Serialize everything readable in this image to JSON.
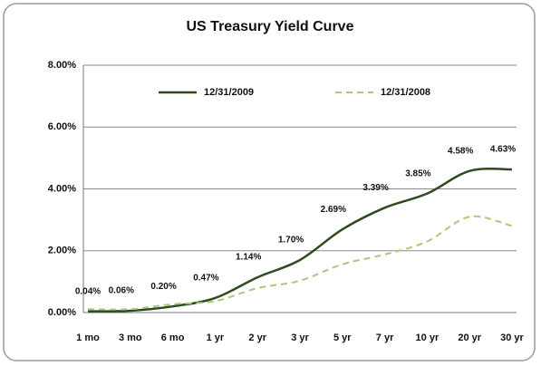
{
  "chart_data": {
    "type": "line",
    "title": "US Treasury Yield Curve",
    "categories": [
      "1 mo",
      "3 mo",
      "6 mo",
      "1 yr",
      "2 yr",
      "3 yr",
      "5 yr",
      "7 yr",
      "10 yr",
      "20 yr",
      "30 yr"
    ],
    "series": [
      {
        "name": "12/31/2009",
        "color": "#2f4a1c",
        "dash": false,
        "values": [
          0.04,
          0.06,
          0.2,
          0.47,
          1.14,
          1.7,
          2.69,
          3.39,
          3.85,
          4.58,
          4.63
        ],
        "value_labels": [
          "0.04%",
          "0.06%",
          "0.20%",
          "0.47%",
          "1.14%",
          "1.70%",
          "2.69%",
          "3.39%",
          "3.85%",
          "4.58%",
          "4.63%"
        ]
      },
      {
        "name": "12/31/2008",
        "color": "#a9c97c",
        "dash": true,
        "values": [
          0.11,
          0.11,
          0.27,
          0.37,
          0.79,
          1.03,
          1.56,
          1.88,
          2.3,
          3.1,
          2.8
        ]
      }
    ],
    "ylim": [
      0,
      8
    ],
    "yticks": [
      {
        "value": 0,
        "label": "0.00%"
      },
      {
        "value": 2,
        "label": "2.00%"
      },
      {
        "value": 4,
        "label": "4.00%"
      },
      {
        "value": 6,
        "label": "6.00%"
      },
      {
        "value": 8,
        "label": "8.00%"
      }
    ],
    "grid": true,
    "legend": "top"
  }
}
